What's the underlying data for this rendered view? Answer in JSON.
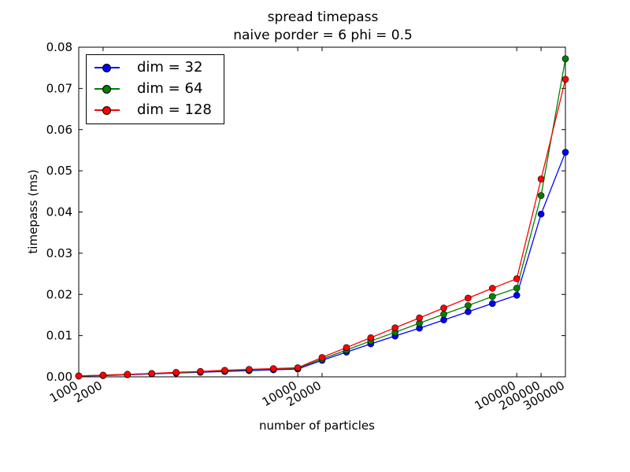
{
  "chart_data": {
    "type": "line",
    "title": "spread timepass",
    "subtitle": "naive porder = 6 phi = 0.5",
    "xlabel": "number of particles",
    "ylabel": "timepass (ms)",
    "xscale": "index",
    "x_tick_labels": [
      "1000",
      "2000",
      "10000",
      "20000",
      "100000",
      "200000",
      "300000"
    ],
    "y_ticks": [
      "0.00",
      "0.01",
      "0.02",
      "0.03",
      "0.04",
      "0.05",
      "0.06",
      "0.07",
      "0.08"
    ],
    "ylim": [
      0,
      0.08
    ],
    "grid": false,
    "legend_position": "top-left",
    "x": [
      1000,
      2000,
      3000,
      4000,
      5000,
      6000,
      7000,
      8000,
      9000,
      10000,
      20000,
      30000,
      40000,
      50000,
      60000,
      70000,
      80000,
      90000,
      100000,
      200000,
      300000
    ],
    "series": [
      {
        "name": "dim = 32",
        "color": "#0000ff",
        "values": [
          0.0002,
          0.0003,
          0.0005,
          0.0007,
          0.0009,
          0.0011,
          0.0013,
          0.0015,
          0.0017,
          0.0019,
          0.004,
          0.006,
          0.008,
          0.0099,
          0.0118,
          0.0138,
          0.0158,
          0.0178,
          0.0198,
          0.0395,
          0.0545
        ]
      },
      {
        "name": "dim = 64",
        "color": "#008000",
        "values": [
          0.0002,
          0.0004,
          0.0006,
          0.0008,
          0.001,
          0.0012,
          0.0015,
          0.0017,
          0.0019,
          0.0021,
          0.0043,
          0.0065,
          0.0087,
          0.0108,
          0.013,
          0.0152,
          0.0173,
          0.0195,
          0.0215,
          0.044,
          0.0772
        ]
      },
      {
        "name": "dim = 128",
        "color": "#ff0000",
        "values": [
          0.0002,
          0.0004,
          0.0006,
          0.0008,
          0.0011,
          0.0013,
          0.0016,
          0.0018,
          0.002,
          0.0022,
          0.0047,
          0.0071,
          0.0095,
          0.0119,
          0.0143,
          0.0167,
          0.0191,
          0.0215,
          0.0238,
          0.048,
          0.0722
        ]
      }
    ]
  }
}
